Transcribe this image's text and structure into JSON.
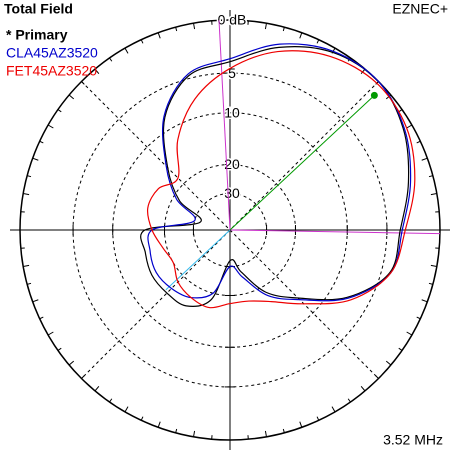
{
  "chart_data": {
    "type": "polar",
    "title": "Total Field",
    "program": "EZNEC+",
    "frequency": "3.52 MHz",
    "scale": "arrl-log",
    "theta": [
      0,
      15,
      30,
      45,
      60,
      75,
      90,
      105,
      120,
      135,
      150,
      165,
      180,
      195,
      210,
      225,
      240,
      255,
      270,
      285,
      300,
      315,
      330,
      345
    ],
    "rlim": [
      -40,
      0
    ],
    "rticks": [
      {
        "value": 0,
        "label": "0 dB"
      },
      {
        "value": -5,
        "label": "5"
      },
      {
        "value": -10,
        "label": "10"
      },
      {
        "value": -20,
        "label": "20"
      },
      {
        "value": -30,
        "label": "30"
      }
    ],
    "cursor_azimuth": 43,
    "half_power_azimuths": [
      93,
      359
    ],
    "series": [
      {
        "name": "* Primary",
        "color": "#000000",
        "values": [
          -3.6,
          -2.2,
          -0.8,
          0,
          -0.4,
          -1.8,
          -3.8,
          -4.7,
          -8.2,
          -14.9,
          -22,
          -33,
          -15.5,
          -15,
          -14.5,
          -14.7,
          -15,
          -18.4,
          -33,
          -27,
          -18.4,
          -13.4,
          -7.6,
          -4.1
        ]
      },
      {
        "name": "CLA45AZ3520",
        "color": "#0000cc",
        "values": [
          -3.4,
          -2.0,
          -0.7,
          0,
          -0.3,
          -1.5,
          -3.5,
          -4.5,
          -8.0,
          -14.5,
          -21,
          -30,
          -17,
          -16,
          -15.5,
          -16,
          -17,
          -20,
          -30,
          -25,
          -17.5,
          -13,
          -7.4,
          -4.0
        ]
      },
      {
        "name": "FET45AZ3520",
        "color": "#ee0000",
        "values": [
          -3.1,
          -1.6,
          -0.5,
          -0.2,
          -0.8,
          -2.2,
          -4.5,
          -7.5,
          -12,
          -18,
          -16,
          -15.5,
          -17,
          -19,
          -20,
          -18,
          -17,
          -16.5,
          -18,
          -18,
          -16,
          -12,
          -7,
          -4
        ]
      }
    ]
  }
}
